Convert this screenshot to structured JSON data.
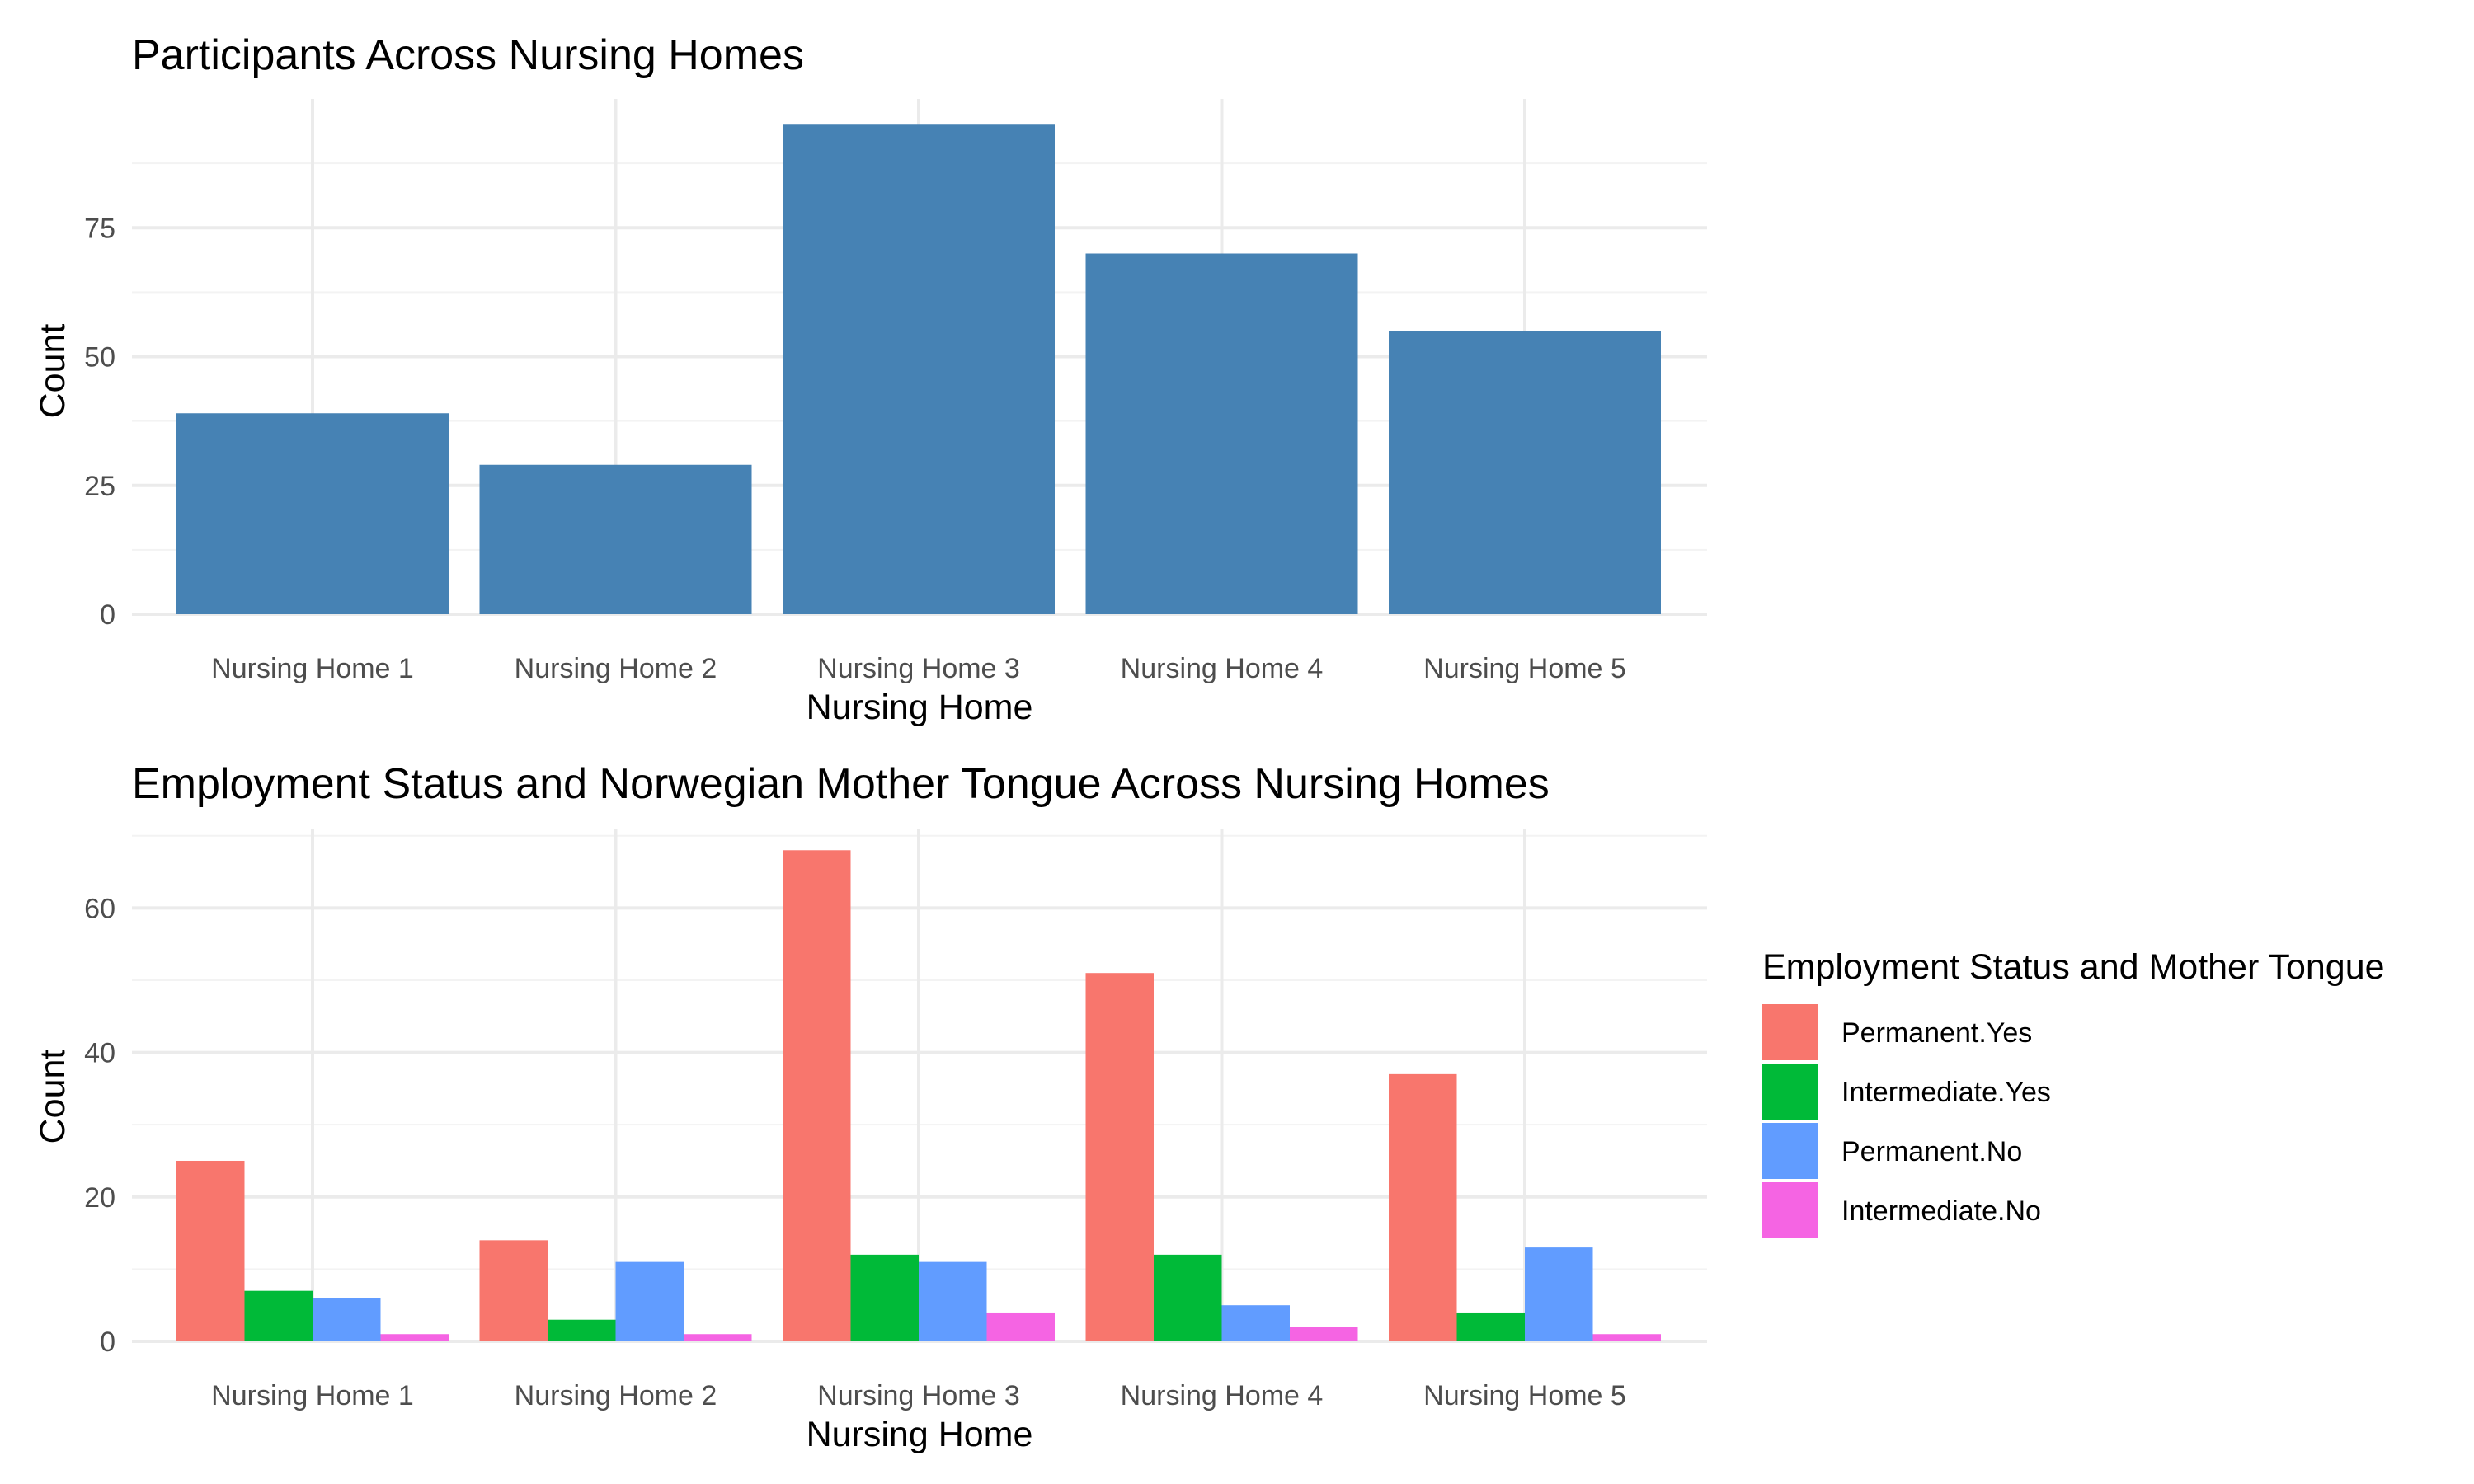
{
  "chart_data": [
    {
      "type": "bar",
      "title": "Participants Across Nursing Homes",
      "xlabel": "Nursing Home",
      "ylabel": "Count",
      "categories": [
        "Nursing Home 1",
        "Nursing Home 2",
        "Nursing Home 3",
        "Nursing Home 4",
        "Nursing Home 5"
      ],
      "values": [
        39,
        29,
        95,
        70,
        55
      ],
      "ylim": [
        0,
        100
      ],
      "yticks": [
        0,
        25,
        50,
        75
      ],
      "grid": true,
      "bar_color": "#4682B4"
    },
    {
      "type": "bar",
      "title": "Employment Status and Norwegian Mother Tongue Across Nursing Homes",
      "xlabel": "Nursing Home",
      "ylabel": "Count",
      "categories": [
        "Nursing Home 1",
        "Nursing Home 2",
        "Nursing Home 3",
        "Nursing Home 4",
        "Nursing Home 5"
      ],
      "series": [
        {
          "name": "Permanent.Yes",
          "values": [
            25,
            14,
            68,
            51,
            37
          ],
          "color": "#F8766D"
        },
        {
          "name": "Intermediate.Yes",
          "values": [
            7,
            3,
            12,
            12,
            4
          ],
          "color": "#00BA38"
        },
        {
          "name": "Permanent.No",
          "values": [
            6,
            11,
            11,
            5,
            13
          ],
          "color": "#619CFF"
        },
        {
          "name": "Intermediate.No",
          "values": [
            1,
            1,
            4,
            2,
            1
          ],
          "color": "#F564E3"
        }
      ],
      "ylim": [
        0,
        71
      ],
      "yticks": [
        0,
        20,
        40,
        60
      ],
      "grid": true,
      "legend": {
        "title": "Employment Status and Mother Tongue",
        "position": "right"
      }
    }
  ]
}
